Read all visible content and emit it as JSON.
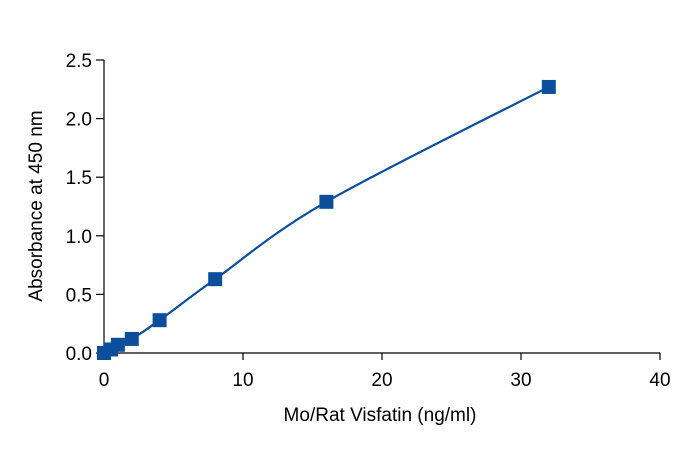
{
  "chart_data": {
    "type": "scatter",
    "title": "",
    "xlabel": "Mo/Rat Visfatin (ng/ml)",
    "ylabel": "Absorbance at 450 nm",
    "xlim": [
      0,
      40
    ],
    "ylim": [
      0,
      2.5
    ],
    "x_ticks": [
      "0",
      "10",
      "20",
      "30",
      "40"
    ],
    "y_ticks": [
      "0.0",
      "0.5",
      "1.0",
      "1.5",
      "2.0",
      "2.5"
    ],
    "grid": false,
    "legend": "none",
    "series": [
      {
        "marker": "square",
        "fit_curve": true,
        "x": [
          0,
          0.5,
          1,
          2,
          4,
          8,
          16,
          32
        ],
        "y": [
          0.0,
          0.03,
          0.07,
          0.12,
          0.28,
          0.63,
          1.29,
          2.27
        ]
      }
    ],
    "colors": {
      "series": "#0b4f9c",
      "axis": "#000000"
    }
  }
}
